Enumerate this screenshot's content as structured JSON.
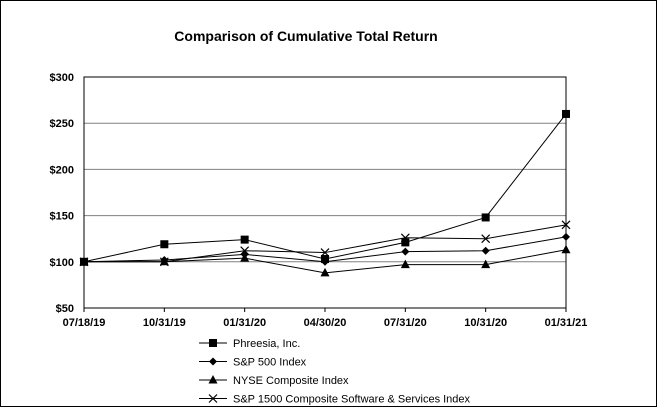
{
  "chart_data": {
    "type": "line",
    "title": "Comparison of Cumulative Total Return",
    "categories": [
      "07/18/19",
      "10/31/19",
      "01/31/20",
      "04/30/20",
      "07/31/20",
      "10/31/20",
      "01/31/21"
    ],
    "yticks": [
      "$50",
      "$100",
      "$150",
      "$200",
      "$250",
      "$300"
    ],
    "ylim": [
      50,
      300
    ],
    "grid": true,
    "legend": "bottom",
    "series": [
      {
        "name": "Phreesia, Inc.",
        "marker": "square",
        "values": [
          100,
          119,
          124,
          103,
          121,
          148,
          260
        ]
      },
      {
        "name": "S&P 500 Index",
        "marker": "diamond",
        "values": [
          100,
          102,
          108,
          100,
          111,
          112,
          127
        ]
      },
      {
        "name": "NYSE Composite Index",
        "marker": "triangle",
        "values": [
          100,
          100,
          104,
          88,
          97,
          97,
          113
        ]
      },
      {
        "name": "S&P 1500 Composite Software & Services Index",
        "marker": "x",
        "values": [
          100,
          100,
          112,
          110,
          126,
          125,
          140
        ]
      }
    ],
    "colors": {
      "line": "#000000",
      "grid": "#808080",
      "frame": "#000000"
    }
  }
}
